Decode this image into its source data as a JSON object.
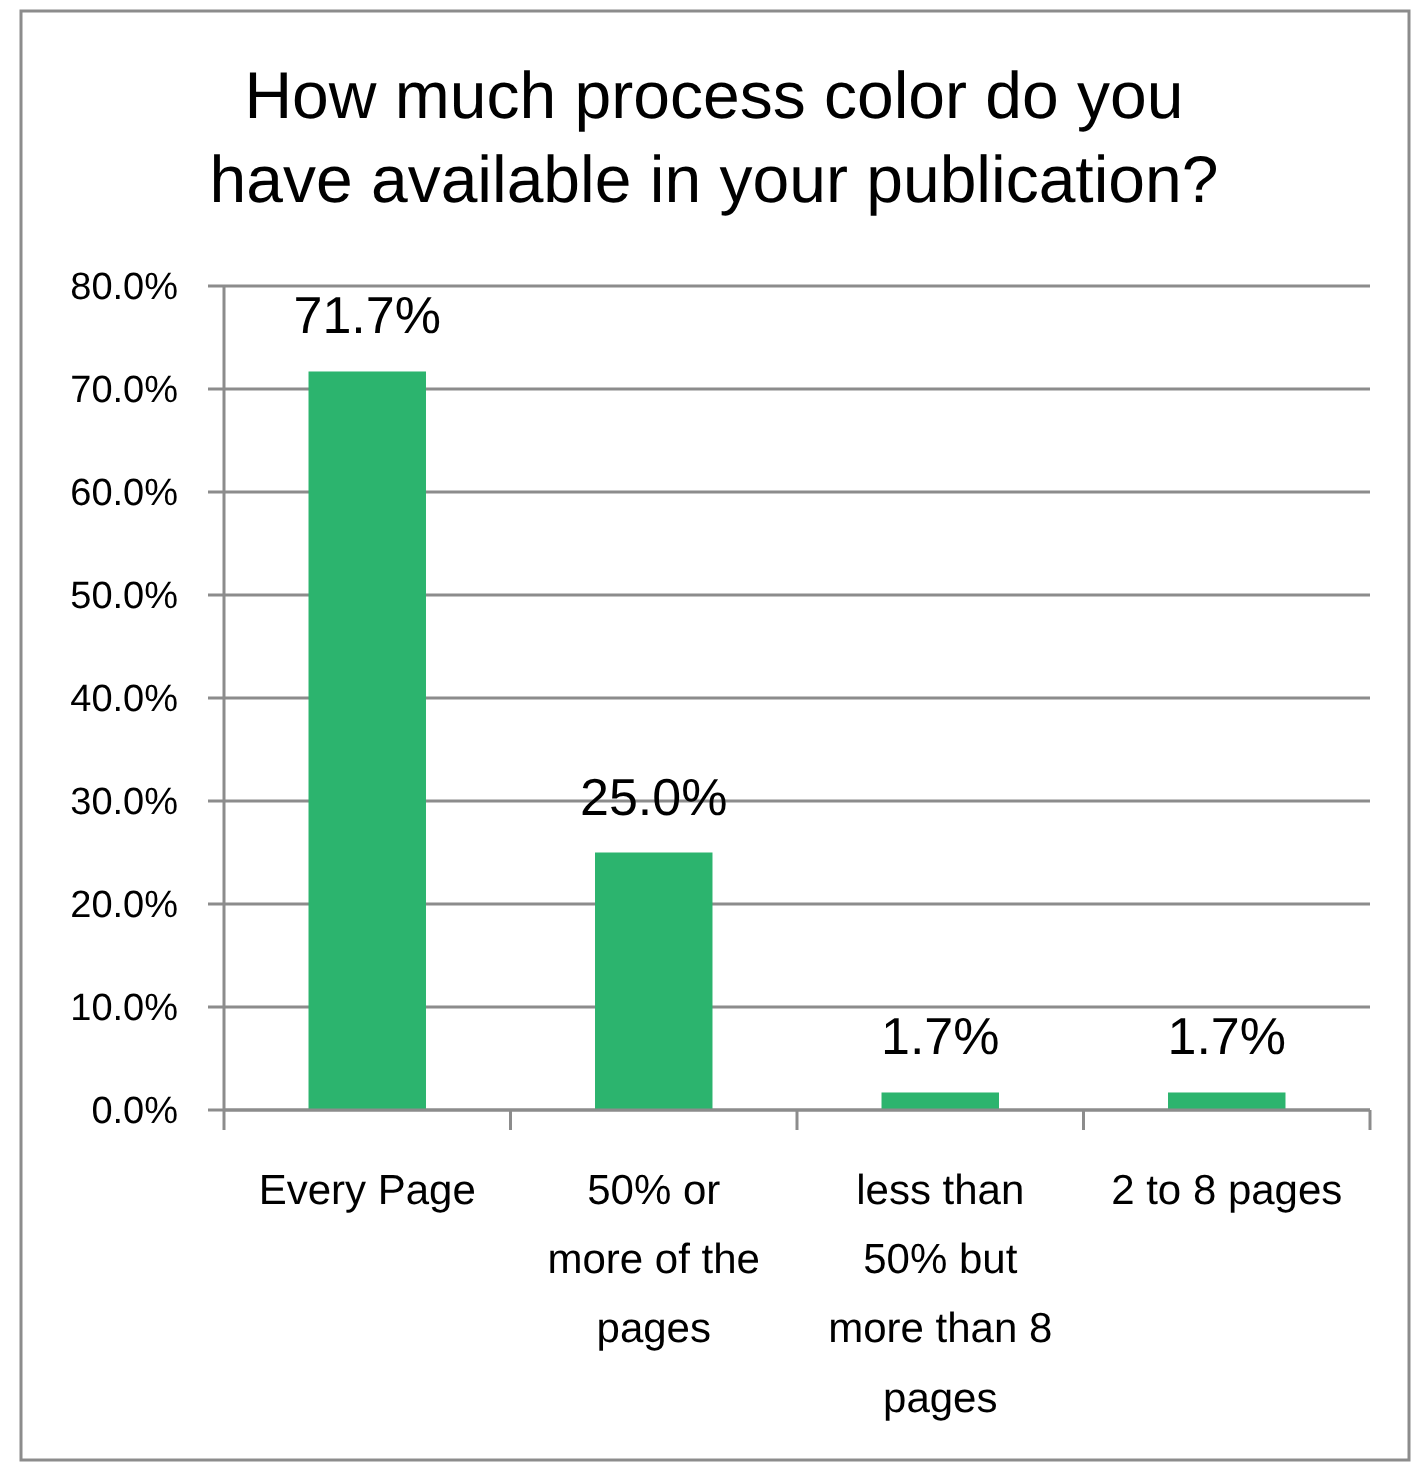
{
  "chart_data": {
    "type": "bar",
    "title": "How much process color do you have available in your publication?",
    "categories": [
      "Every Page",
      "50% or more of the pages",
      "less than 50% but more than 8 pages",
      "2 to 8 pages"
    ],
    "values": [
      71.7,
      25.0,
      1.7,
      1.7
    ],
    "color": "#2cb46e",
    "value_labels": [
      "71.7%",
      "25.0%",
      "1.7%",
      "1.7%"
    ],
    "ylim": [
      0,
      80
    ],
    "yticks": [
      {
        "value": 0,
        "label": "0.0%"
      },
      {
        "value": 10,
        "label": "10.0%"
      },
      {
        "value": 20,
        "label": "20.0%"
      },
      {
        "value": 30,
        "label": "30.0%"
      },
      {
        "value": 40,
        "label": "40.0%"
      },
      {
        "value": 50,
        "label": "50.0%"
      },
      {
        "value": 60,
        "label": "60.0%"
      },
      {
        "value": 70,
        "label": "70.0%"
      },
      {
        "value": 80,
        "label": "80.0%"
      }
    ],
    "grid": "y"
  }
}
